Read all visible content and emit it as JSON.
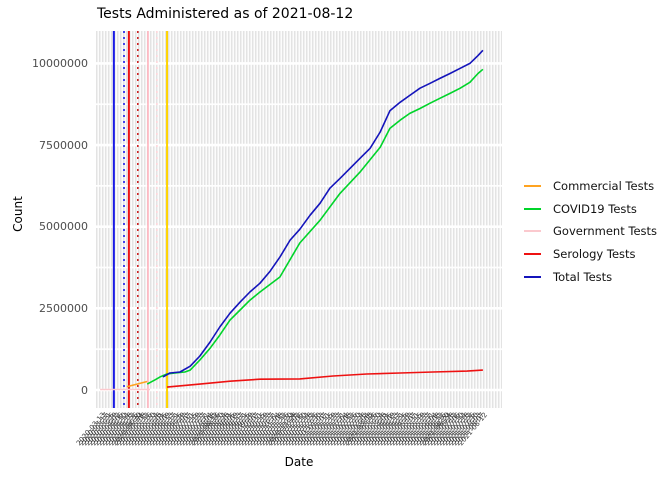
{
  "title": "Tests Administered as of 2021-08-12",
  "axes": {
    "x_label": "Date",
    "y_label": "Count",
    "y_ticks": [
      "0",
      "2500000",
      "5000000",
      "7500000",
      "10000000"
    ],
    "x_tick_dates": {
      "start": "2020-03-13",
      "end": "2021-08-12",
      "count": 130,
      "note": "dense overlapping rotated date labels, illegible in screenshot"
    }
  },
  "legend": {
    "items": [
      {
        "label": "Commercial Tests",
        "color": "#ffa320"
      },
      {
        "label": "COVID19 Tests",
        "color": "#00d42a"
      },
      {
        "label": "Government Tests",
        "color": "#fbc9ce"
      },
      {
        "label": "Serology Tests",
        "color": "#ee1111"
      },
      {
        "label": "Total Tests",
        "color": "#1414bb"
      }
    ]
  },
  "chart_data": {
    "type": "line",
    "title": "Tests Administered as of 2021-08-12",
    "xlabel": "Date",
    "ylabel": "Count",
    "x_domain": [
      "2020-03-13",
      "2021-08-12"
    ],
    "ylim": [
      0,
      10900000
    ],
    "y_major_ticks": [
      0,
      2500000,
      5000000,
      7500000,
      10000000
    ],
    "y_minor_ticks": [
      1250000,
      3750000,
      6250000,
      8750000
    ],
    "grid": "dense vertical gray stripes (one per date), white major/minor horizontal lines",
    "legend_position": "right",
    "vlines": [
      {
        "t": 0.044,
        "color": "#1a1ae6",
        "style": "solid",
        "width": 2
      },
      {
        "t": 0.069,
        "color": "#1a1ae6",
        "style": "dotted",
        "width": 1.6
      },
      {
        "t": 0.081,
        "color": "#ee1111",
        "style": "solid",
        "width": 2
      },
      {
        "t": 0.103,
        "color": "#cc2020",
        "style": "dotted",
        "width": 1.6
      },
      {
        "t": 0.128,
        "color": "#ffb3bd",
        "style": "solid",
        "width": 1.6
      },
      {
        "t": 0.15,
        "color": "#ffd6db",
        "style": "dotted",
        "width": 1.6
      },
      {
        "t": 0.175,
        "color": "#ffd400",
        "style": "solid",
        "width": 2
      }
    ],
    "series": [
      {
        "name": "Government Tests",
        "color": "#fbc9ce",
        "width": 1.5,
        "points": [
          [
            0.01,
            15000
          ],
          [
            0.133,
            15000
          ]
        ]
      },
      {
        "name": "Commercial Tests",
        "color": "#ffa320",
        "width": 1.6,
        "points": [
          [
            0.076,
            100000
          ],
          [
            0.101,
            180000
          ],
          [
            0.126,
            260000
          ]
        ]
      },
      {
        "name": "Serology Tests",
        "color": "#ee1111",
        "width": 1.6,
        "points": [
          [
            0.175,
            90000
          ],
          [
            0.256,
            180000
          ],
          [
            0.33,
            270000
          ],
          [
            0.404,
            330000
          ],
          [
            0.502,
            340000
          ],
          [
            0.584,
            430000
          ],
          [
            0.667,
            490000
          ],
          [
            0.749,
            520000
          ],
          [
            0.83,
            550000
          ],
          [
            0.914,
            580000
          ],
          [
            0.953,
            610000
          ]
        ]
      },
      {
        "name": "COVID19 Tests",
        "color": "#00d42a",
        "width": 1.6,
        "points": [
          [
            0.126,
            180000
          ],
          [
            0.145,
            310000
          ],
          [
            0.158,
            400000
          ],
          [
            0.175,
            490000
          ],
          [
            0.195,
            520000
          ],
          [
            0.219,
            550000
          ],
          [
            0.232,
            610000
          ],
          [
            0.256,
            920000
          ],
          [
            0.281,
            1280000
          ],
          [
            0.305,
            1680000
          ],
          [
            0.33,
            2140000
          ],
          [
            0.355,
            2450000
          ],
          [
            0.379,
            2750000
          ],
          [
            0.404,
            3000000
          ],
          [
            0.453,
            3460000
          ],
          [
            0.502,
            4500000
          ],
          [
            0.552,
            5200000
          ],
          [
            0.601,
            6020000
          ],
          [
            0.65,
            6670000
          ],
          [
            0.7,
            7430000
          ],
          [
            0.724,
            8010000
          ],
          [
            0.749,
            8260000
          ],
          [
            0.773,
            8470000
          ],
          [
            0.798,
            8620000
          ],
          [
            0.823,
            8780000
          ],
          [
            0.847,
            8930000
          ],
          [
            0.872,
            9080000
          ],
          [
            0.897,
            9240000
          ],
          [
            0.921,
            9420000
          ],
          [
            0.941,
            9690000
          ],
          [
            0.953,
            9820000
          ]
        ]
      },
      {
        "name": "Total Tests",
        "color": "#1414bb",
        "width": 1.6,
        "points": [
          [
            0.165,
            400000
          ],
          [
            0.182,
            520000
          ],
          [
            0.207,
            550000
          ],
          [
            0.232,
            730000
          ],
          [
            0.256,
            1040000
          ],
          [
            0.281,
            1470000
          ],
          [
            0.305,
            1930000
          ],
          [
            0.33,
            2350000
          ],
          [
            0.355,
            2690000
          ],
          [
            0.379,
            3000000
          ],
          [
            0.404,
            3270000
          ],
          [
            0.429,
            3640000
          ],
          [
            0.453,
            4070000
          ],
          [
            0.478,
            4590000
          ],
          [
            0.502,
            4920000
          ],
          [
            0.527,
            5350000
          ],
          [
            0.552,
            5720000
          ],
          [
            0.576,
            6180000
          ],
          [
            0.601,
            6480000
          ],
          [
            0.626,
            6790000
          ],
          [
            0.65,
            7090000
          ],
          [
            0.675,
            7400000
          ],
          [
            0.7,
            7900000
          ],
          [
            0.724,
            8550000
          ],
          [
            0.749,
            8810000
          ],
          [
            0.773,
            9020000
          ],
          [
            0.798,
            9240000
          ],
          [
            0.823,
            9390000
          ],
          [
            0.847,
            9540000
          ],
          [
            0.872,
            9690000
          ],
          [
            0.897,
            9850000
          ],
          [
            0.921,
            10000000
          ],
          [
            0.941,
            10240000
          ],
          [
            0.953,
            10400000
          ]
        ]
      }
    ]
  }
}
